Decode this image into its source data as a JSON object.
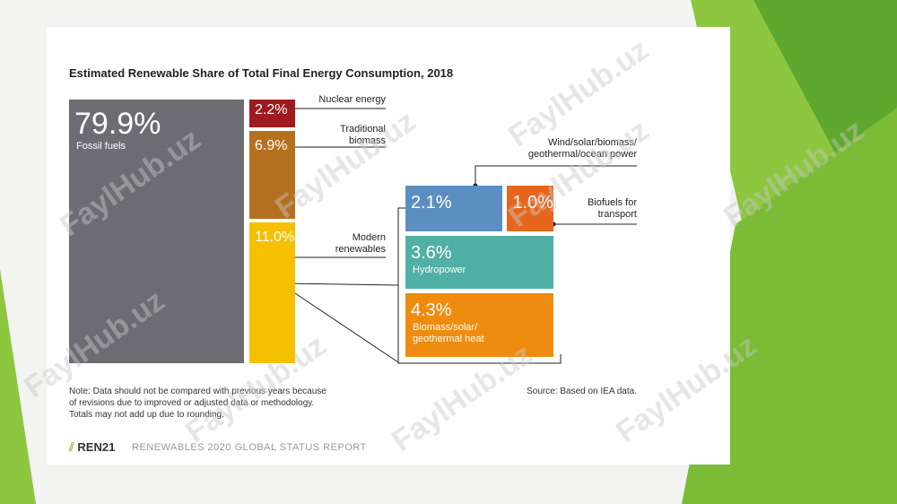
{
  "chart_data": {
    "type": "treemap",
    "title": "Estimated Renewable Share of Total Final Energy Consumption, 2018",
    "categories": [
      "Fossil fuels",
      "Nuclear energy",
      "Traditional\nbiomass",
      "Modern\nrenewables"
    ],
    "values": [
      79.9,
      2.2,
      6.9,
      11.0
    ],
    "value_labels": [
      "79.9%",
      "2.2%",
      "6.9%",
      "11.0%"
    ],
    "colors": [
      "#6e6c73",
      "#9e1b1f",
      "#b5701f",
      "#f5c000"
    ],
    "breakdown": {
      "categories": [
        "Wind/solar/biomass/\ngeothermal/ocean power",
        "Biofuels for\ntransport",
        "Hydropower",
        "Biomass/solar/\ngeothermal heat"
      ],
      "values": [
        2.1,
        1.0,
        3.6,
        4.3
      ],
      "value_labels": [
        "2.1%",
        "1.0%",
        "3.6%",
        "4.3%"
      ],
      "colors": [
        "#5b8fc1",
        "#e8661c",
        "#4fb0a3",
        "#ee8c0f"
      ]
    },
    "note": "Note: Data should not be compared with previous years because\nof revisions due to improved or adjusted data or methodology.\nTotals may not add up due to rounding.",
    "source": "Source: Based on IEA data."
  },
  "footer": {
    "logo": "REN21",
    "report": "RENEWABLES 2020 GLOBAL STATUS REPORT"
  },
  "watermark": "FaylHub.uz"
}
